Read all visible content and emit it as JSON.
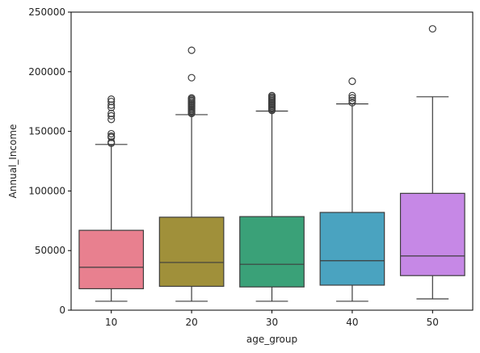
{
  "chart_data": {
    "type": "box",
    "xlabel": "age_group",
    "ylabel": "Annual_Income",
    "categories": [
      "10",
      "20",
      "30",
      "40",
      "50"
    ],
    "ylim": [
      0,
      250000
    ],
    "yticks": [
      0,
      50000,
      100000,
      150000,
      200000,
      250000
    ],
    "ytick_labels": [
      "0",
      "50000",
      "100000",
      "150000",
      "200000",
      "250000"
    ],
    "grid": false,
    "boxes": [
      {
        "category": "10",
        "color": "#E8808F",
        "whisker_low": 7500,
        "q1": 18000,
        "median": 36000,
        "q3": 67000,
        "whisker_high": 139000,
        "outliers": [
          140000,
          141000,
          145000,
          146000,
          148000,
          160000,
          163000,
          165000,
          170000,
          172000,
          175000,
          177000
        ]
      },
      {
        "category": "20",
        "color": "#A0903A",
        "whisker_low": 7500,
        "q1": 20000,
        "median": 40000,
        "q3": 78000,
        "whisker_high": 164000,
        "outliers": [
          165000,
          166000,
          167000,
          168000,
          169000,
          170000,
          171000,
          172000,
          173000,
          174000,
          175000,
          176000,
          177000,
          178000,
          195000,
          218000
        ]
      },
      {
        "category": "30",
        "color": "#3AA178",
        "whisker_low": 7500,
        "q1": 19500,
        "median": 38500,
        "q3": 78500,
        "whisker_high": 167000,
        "outliers": [
          167500,
          168000,
          169000,
          170000,
          171000,
          172000,
          173000,
          174000,
          175000,
          176000,
          177000,
          178000,
          179000,
          180000
        ]
      },
      {
        "category": "40",
        "color": "#4AA3C0",
        "whisker_low": 7500,
        "q1": 21000,
        "median": 41500,
        "q3": 82000,
        "whisker_high": 173000,
        "outliers": [
          174000,
          176000,
          178000,
          180000,
          192000
        ]
      },
      {
        "category": "50",
        "color": "#C688E6",
        "whisker_low": 9500,
        "q1": 29000,
        "median": 45500,
        "q3": 98000,
        "whisker_high": 179000,
        "outliers": [
          236000
        ]
      }
    ]
  }
}
